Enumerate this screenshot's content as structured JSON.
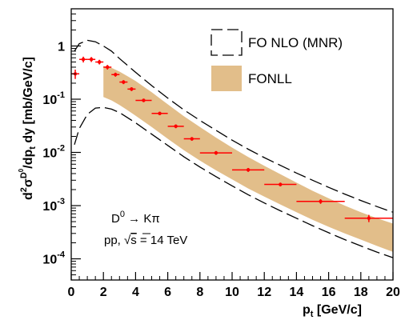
{
  "chart_data": {
    "type": "scatter",
    "title": "",
    "xlabel": "p_t [GeV/c]",
    "xlabel_main": "p",
    "xlabel_sub": "t",
    "xlabel_unit": " [GeV/c]",
    "ylabel": "d²σ^D⁰/dp_t dy [mb/GeV/c]",
    "ylabel_parts": {
      "d": "d",
      "two": "2",
      "sigma": "σ",
      "D": "D",
      "zero": "0",
      "slash_dp": "/dp",
      "t": "t",
      "dy": " dy",
      "unit": " [mb/GeV/c]"
    },
    "xlim": [
      0,
      20
    ],
    "ylim": [
      4e-05,
      5
    ],
    "yscale": "log",
    "grid": false,
    "x_ticks": [
      0,
      2,
      4,
      6,
      8,
      10,
      12,
      14,
      16,
      18,
      20
    ],
    "x_tick_labels": [
      "0",
      "2",
      "4",
      "6",
      "8",
      "10",
      "12",
      "14",
      "16",
      "18",
      "20"
    ],
    "y_ticks": [
      0.0001,
      0.001,
      0.01,
      0.1,
      1
    ],
    "y_tick_labels": [
      {
        "base": "10",
        "exp": "-4"
      },
      {
        "base": "10",
        "exp": "-3"
      },
      {
        "base": "10",
        "exp": "-2"
      },
      {
        "base": "10",
        "exp": "-1"
      },
      {
        "base": "1",
        "exp": ""
      }
    ],
    "legend": {
      "placement": "top-right",
      "entries": [
        {
          "label": "FO NLO (MNR)",
          "style": "dashed-box"
        },
        {
          "label": "FONLL",
          "style": "filled-box"
        }
      ]
    },
    "annotations": {
      "decay": {
        "lhs": "D",
        "lhs_sup": "0",
        "arrow": " → ",
        "rhs": "Kπ"
      },
      "system": {
        "pre": "pp, ",
        "sqrt": "s",
        "post": " = 14 TeV"
      }
    },
    "colors": {
      "data_points": "#ff0000",
      "fonll_band": "#e2be8a",
      "nlo_lines": "#000000"
    },
    "series": [
      {
        "kind": "points",
        "x": [
          0.25,
          0.75,
          1.25,
          1.75,
          2.25,
          2.75,
          3.25,
          3.75,
          4.5,
          5.5,
          6.5,
          7.5,
          9.0,
          11.0,
          13.0,
          15.5,
          18.5
        ],
        "xerr": [
          0.25,
          0.25,
          0.25,
          0.25,
          0.25,
          0.25,
          0.25,
          0.25,
          0.5,
          0.5,
          0.5,
          0.5,
          1.0,
          1.0,
          1.0,
          1.5,
          1.5
        ],
        "y": [
          0.3,
          0.56,
          0.56,
          0.5,
          0.4,
          0.29,
          0.21,
          0.155,
          0.095,
          0.054,
          0.031,
          0.018,
          0.0098,
          0.0047,
          0.0025,
          0.0012,
          0.00058
        ],
        "yerr": [
          0.06,
          0.07,
          0.06,
          0.05,
          0.04,
          0.025,
          0.018,
          0.013,
          0.007,
          0.004,
          0.0025,
          0.0014,
          0.0008,
          0.0004,
          0.0002,
          0.00012,
          9e-05
        ]
      },
      {
        "kind": "band",
        "x": [
          2,
          2.5,
          3,
          3.5,
          4,
          5,
          6,
          7,
          8,
          9,
          10,
          11,
          12,
          13,
          14,
          15,
          16,
          17,
          18,
          19,
          20
        ],
        "upper": [
          0.42,
          0.39,
          0.33,
          0.27,
          0.22,
          0.135,
          0.08,
          0.048,
          0.03,
          0.019,
          0.0123,
          0.0082,
          0.0056,
          0.0039,
          0.0027,
          0.0019,
          0.00137,
          0.001,
          0.00075,
          0.00058,
          0.00046
        ],
        "lower": [
          0.11,
          0.095,
          0.078,
          0.062,
          0.049,
          0.03,
          0.018,
          0.011,
          0.007,
          0.0046,
          0.0031,
          0.0021,
          0.00148,
          0.00105,
          0.00075,
          0.00054,
          0.0004,
          0.0003,
          0.00023,
          0.000175,
          0.000135
        ]
      },
      {
        "kind": "dashed-line",
        "x": [
          0.2,
          0.5,
          1.0,
          1.5,
          2,
          2.5,
          3,
          4,
          5,
          6,
          7,
          8,
          9,
          10,
          11,
          12,
          13,
          14,
          15,
          16,
          17,
          18,
          19,
          20
        ],
        "y": [
          0.8,
          1.1,
          1.28,
          1.2,
          1.0,
          0.8,
          0.58,
          0.32,
          0.18,
          0.105,
          0.063,
          0.04,
          0.026,
          0.017,
          0.0115,
          0.008,
          0.0057,
          0.0041,
          0.003,
          0.0022,
          0.00165,
          0.00125,
          0.00096,
          0.00075
        ]
      },
      {
        "kind": "dashed-line",
        "x": [
          0.2,
          0.5,
          1.0,
          1.5,
          2,
          2.5,
          3,
          4,
          5,
          6,
          7,
          8,
          9,
          10,
          11,
          12,
          13,
          14,
          15,
          16,
          17,
          18,
          19,
          20
        ],
        "y": [
          0.014,
          0.028,
          0.052,
          0.068,
          0.07,
          0.065,
          0.056,
          0.036,
          0.022,
          0.0135,
          0.0083,
          0.0053,
          0.0035,
          0.00235,
          0.0016,
          0.00112,
          0.0008,
          0.00058,
          0.00042,
          0.00031,
          0.00023,
          0.000175,
          0.000134,
          0.000105
        ]
      }
    ]
  }
}
